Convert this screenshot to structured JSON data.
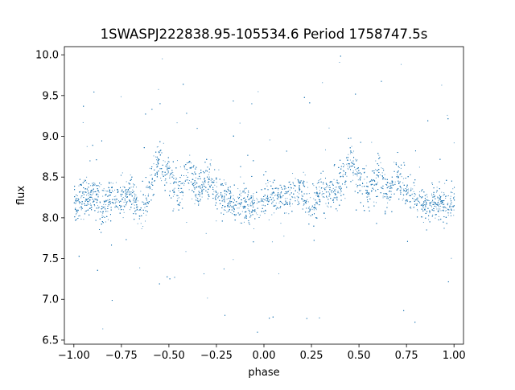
{
  "chart_data": {
    "type": "scatter",
    "title": "1SWASPJ222838.95-105534.6 Period 1758747.5s",
    "xlabel": "phase",
    "ylabel": "flux",
    "xlim": [
      -1.05,
      1.05
    ],
    "ylim": [
      6.45,
      10.1
    ],
    "x_ticks": [
      -1.0,
      -0.75,
      -0.5,
      -0.25,
      0.0,
      0.25,
      0.5,
      0.75,
      1.0
    ],
    "x_tick_labels": [
      "−1.00",
      "−0.75",
      "−0.50",
      "−0.25",
      "0.00",
      "0.25",
      "0.50",
      "0.75",
      "1.00"
    ],
    "y_ticks": [
      6.5,
      7.0,
      7.5,
      8.0,
      8.5,
      9.0,
      9.5,
      10.0
    ],
    "y_tick_labels": [
      "6.5",
      "7.0",
      "7.5",
      "8.0",
      "8.5",
      "9.0",
      "9.5",
      "10.0"
    ],
    "grid": false,
    "legend": "none",
    "marker_color": "#1f77b4",
    "series": [
      {
        "x": [
          -1.0,
          -0.95,
          -0.9,
          -0.85,
          -0.8,
          -0.75,
          -0.7,
          -0.65,
          -0.6,
          -0.55,
          -0.5,
          -0.45,
          -0.4,
          -0.35,
          -0.3,
          -0.25,
          -0.2,
          -0.15,
          -0.1,
          -0.05,
          0.0,
          0.05,
          0.1,
          0.15,
          0.2,
          0.25,
          0.3,
          0.35,
          0.4,
          0.45,
          0.5,
          0.55,
          0.6,
          0.65,
          0.7,
          0.75,
          0.8,
          0.85,
          0.9,
          0.95,
          1.0
        ],
        "y_center": [
          8.2,
          8.25,
          8.3,
          8.1,
          8.3,
          8.2,
          8.35,
          8.0,
          8.4,
          8.75,
          8.5,
          8.3,
          8.6,
          8.3,
          8.5,
          8.35,
          8.25,
          8.15,
          8.2,
          8.15,
          8.2,
          8.3,
          8.2,
          8.3,
          8.35,
          8.1,
          8.35,
          8.3,
          8.4,
          8.75,
          8.5,
          8.3,
          8.6,
          8.3,
          8.5,
          8.35,
          8.25,
          8.15,
          8.2,
          8.15,
          8.2
        ],
        "y_spread": [
          0.3,
          0.35,
          0.3,
          0.35,
          0.3,
          0.35,
          0.35,
          0.3,
          0.35,
          0.35,
          0.4,
          0.35,
          0.4,
          0.35,
          0.35,
          0.3,
          0.3,
          0.3,
          0.3,
          0.3,
          0.3,
          0.35,
          0.3,
          0.35,
          0.3,
          0.35,
          0.35,
          0.3,
          0.35,
          0.35,
          0.4,
          0.35,
          0.4,
          0.35,
          0.35,
          0.3,
          0.3,
          0.3,
          0.3,
          0.3,
          0.3
        ],
        "y_min": 6.6,
        "y_max": 10.0
      }
    ]
  }
}
